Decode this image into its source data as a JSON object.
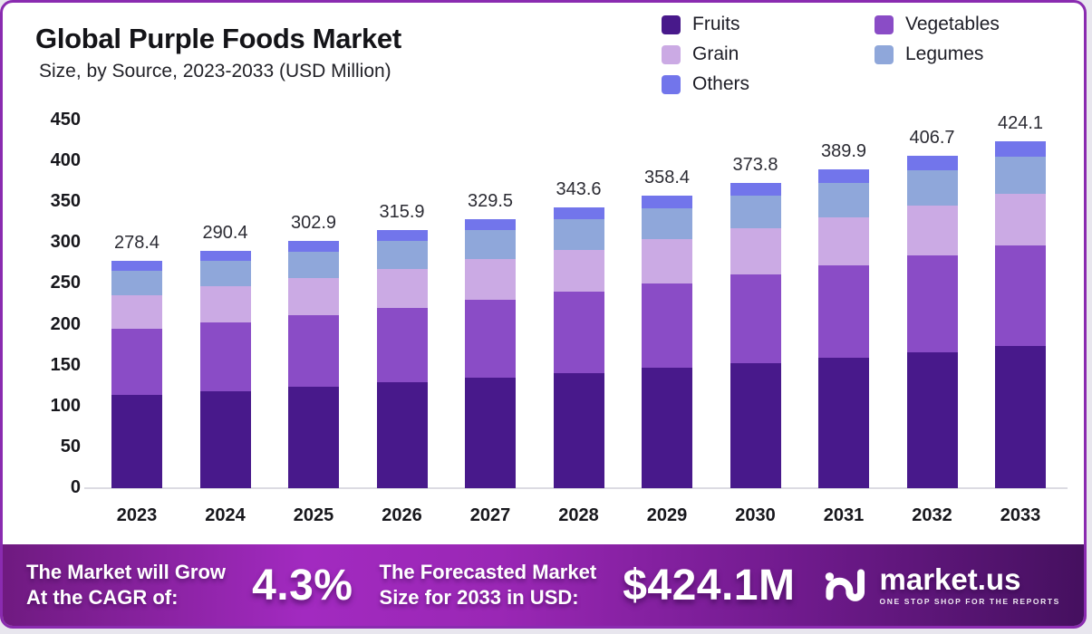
{
  "header": {
    "title": "Global Purple Foods Market",
    "subtitle": "Size, by Source, 2023-2033 (USD Million)"
  },
  "legend": [
    {
      "label": "Fruits",
      "color": "#48198b"
    },
    {
      "label": "Vegetables",
      "color": "#8a4cc6"
    },
    {
      "label": "Grain",
      "color": "#cbaae4"
    },
    {
      "label": "Legumes",
      "color": "#8fa7da"
    },
    {
      "label": "Others",
      "color": "#7275eb"
    }
  ],
  "chart_data": {
    "type": "bar",
    "stacked": true,
    "title": "Global Purple Foods Market Size, by Source, 2023-2033 (USD Million)",
    "xlabel": "",
    "ylabel": "",
    "ylim": [
      0,
      450
    ],
    "yticks": [
      0,
      50,
      100,
      150,
      200,
      250,
      300,
      350,
      400,
      450
    ],
    "grid": false,
    "legend_position": "top-right",
    "categories": [
      "2023",
      "2024",
      "2025",
      "2026",
      "2027",
      "2028",
      "2029",
      "2030",
      "2031",
      "2032",
      "2033"
    ],
    "series": [
      {
        "name": "Fruits",
        "color": "#48198b",
        "values": [
          114.1,
          119.1,
          124.2,
          129.5,
          135.1,
          140.9,
          146.9,
          153.3,
          159.9,
          166.7,
          173.9
        ]
      },
      {
        "name": "Vegetables",
        "color": "#8a4cc6",
        "values": [
          80.7,
          84.2,
          87.8,
          91.6,
          95.6,
          99.6,
          103.9,
          108.4,
          113.1,
          117.9,
          123.0
        ]
      },
      {
        "name": "Grain",
        "color": "#cbaae4",
        "values": [
          41.8,
          43.6,
          45.4,
          47.4,
          49.4,
          51.5,
          53.8,
          56.1,
          58.5,
          61.0,
          63.6
        ]
      },
      {
        "name": "Legumes",
        "color": "#8fa7da",
        "values": [
          29.8,
          31.1,
          32.4,
          33.8,
          35.3,
          36.8,
          38.3,
          40.0,
          41.7,
          43.5,
          45.4
        ]
      },
      {
        "name": "Others",
        "color": "#7275eb",
        "values": [
          12.0,
          12.4,
          13.1,
          13.6,
          14.1,
          14.8,
          15.5,
          16.0,
          16.7,
          17.6,
          18.2
        ]
      }
    ],
    "totals": [
      278.4,
      290.4,
      302.9,
      315.9,
      329.5,
      343.6,
      358.4,
      373.8,
      389.9,
      406.7,
      424.1
    ]
  },
  "footer": {
    "cagr_label_line1": "The Market will Grow",
    "cagr_label_line2": "At the CAGR of:",
    "cagr_value": "4.3%",
    "forecast_label_line1": "The Forecasted Market",
    "forecast_label_line2": "Size for 2033 in USD:",
    "forecast_value": "$424.1M",
    "brand": {
      "name": "market.us",
      "tagline": "ONE STOP SHOP FOR THE REPORTS"
    }
  },
  "colors": {
    "card_border": "#8a2bb0",
    "background": "#ffffff",
    "axis_text": "#17171c",
    "value_label": "#2b2b33",
    "baseline": "#dcdbe2",
    "footer_gradient_mid": "#a22ac0",
    "footer_gradient_edge": "#45105f"
  }
}
